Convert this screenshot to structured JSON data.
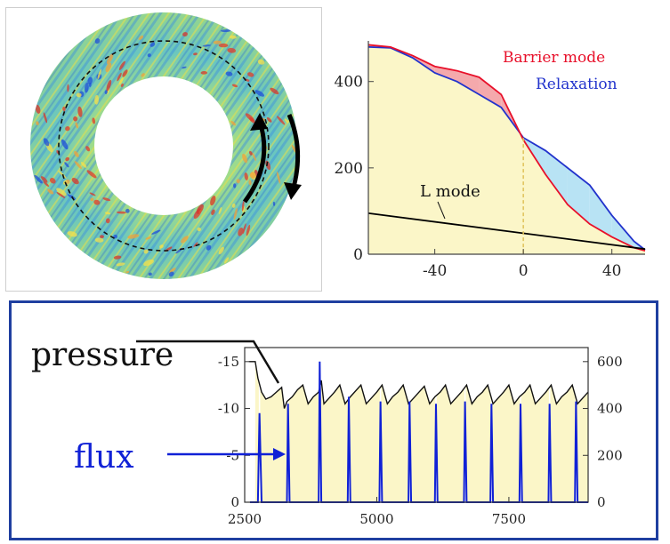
{
  "colors": {
    "barrier": "#e8102a",
    "relaxation": "#2233cc",
    "barrier_fill": "#f4a9ac",
    "relaxation_fill": "#b8e3f4",
    "background_fill": "#fbf6c8",
    "flux": "#1021d6",
    "pressure": "#111111",
    "frame": "#1f3fa0"
  },
  "torus": {
    "arrow_icons": [
      "curved-arrow-up-icon",
      "curved-arrow-down-icon"
    ]
  },
  "chart_data": [
    {
      "type": "line",
      "series": [
        {
          "name": "Barrier mode",
          "x": [
            -70,
            -60,
            -50,
            -40,
            -30,
            -20,
            -10,
            0,
            10,
            20,
            30,
            40,
            50,
            55
          ],
          "y": [
            485,
            480,
            460,
            435,
            425,
            410,
            370,
            265,
            185,
            115,
            70,
            40,
            15,
            8
          ]
        },
        {
          "name": "Relaxation",
          "x": [
            -70,
            -60,
            -50,
            -40,
            -30,
            -20,
            -10,
            0,
            10,
            20,
            30,
            40,
            50,
            55
          ],
          "y": [
            480,
            478,
            455,
            420,
            400,
            370,
            340,
            270,
            240,
            200,
            160,
            90,
            30,
            10
          ]
        },
        {
          "name": "L mode",
          "x": [
            -70,
            55
          ],
          "y": [
            95,
            12
          ]
        }
      ],
      "xticks": [
        "-40",
        "0",
        "40"
      ],
      "xtick_values": [
        -40,
        0,
        40
      ],
      "yticks": [
        "0",
        "200",
        "400"
      ],
      "ytick_values": [
        0,
        200,
        400
      ],
      "xlim": [
        -70,
        55
      ],
      "ylim": [
        0,
        490
      ],
      "annotations": [
        "Barrier mode",
        "Relaxation",
        "L mode"
      ],
      "vline_x": 0
    },
    {
      "type": "line",
      "series": [
        {
          "name": "pressure",
          "axis": "right",
          "x": [
            2580,
            2700,
            2750,
            2820,
            2900,
            3000,
            3100,
            3200,
            3250,
            3300,
            3400,
            3500,
            3600,
            3700,
            3800,
            3900,
            3950,
            4000,
            4100,
            4200,
            4300,
            4400,
            4500,
            4600,
            4700,
            4800,
            4900,
            5000,
            5100,
            5200,
            5300,
            5400,
            5500,
            5600,
            5700,
            5800,
            5900,
            6000,
            6100,
            6200,
            6300,
            6400,
            6500,
            6600,
            6700,
            6800,
            6900,
            7000,
            7100,
            7200,
            7300,
            7400,
            7500,
            7600,
            7700,
            7800,
            7900,
            8000,
            8100,
            8200,
            8300,
            8400,
            8500,
            8600,
            8700,
            8800,
            8900,
            9000
          ],
          "y": [
            600,
            600,
            530,
            470,
            440,
            450,
            470,
            490,
            400,
            430,
            450,
            480,
            500,
            420,
            450,
            470,
            520,
            420,
            445,
            470,
            500,
            420,
            450,
            475,
            500,
            420,
            445,
            470,
            500,
            420,
            450,
            470,
            500,
            420,
            445,
            470,
            495,
            420,
            450,
            470,
            500,
            420,
            445,
            470,
            500,
            420,
            450,
            470,
            500,
            420,
            445,
            470,
            500,
            420,
            450,
            470,
            500,
            420,
            445,
            470,
            500,
            420,
            450,
            470,
            500,
            420,
            445,
            470
          ]
        },
        {
          "name": "flux",
          "axis": "right",
          "x": [
            2600,
            2750,
            2780,
            2820,
            3300,
            3320,
            3350,
            3900,
            3920,
            3950,
            4450,
            4470,
            4500,
            5050,
            5070,
            5100,
            5600,
            5620,
            5650,
            6100,
            6120,
            6150,
            6650,
            6670,
            6700,
            7150,
            7170,
            7200,
            7700,
            7720,
            7750,
            8250,
            8270,
            8300,
            8750,
            8770,
            8800,
            9000
          ],
          "y": [
            0,
            0,
            380,
            0,
            0,
            420,
            0,
            0,
            600,
            0,
            0,
            450,
            0,
            0,
            430,
            0,
            0,
            430,
            0,
            0,
            420,
            0,
            0,
            430,
            0,
            0,
            420,
            0,
            0,
            420,
            0,
            0,
            420,
            0,
            0,
            430,
            0,
            0
          ]
        }
      ],
      "xticks": [
        "2500",
        "5000",
        "7500"
      ],
      "xtick_values": [
        2500,
        5000,
        7500
      ],
      "xlim": [
        2500,
        9000
      ],
      "left_yticks": [
        "0",
        "-5",
        "-10",
        "-15"
      ],
      "left_ytick_values": [
        0,
        5,
        10,
        15
      ],
      "left_ylim": [
        0,
        16.5
      ],
      "right_yticks": [
        "0",
        "200",
        "400",
        "600"
      ],
      "right_ytick_values": [
        0,
        200,
        400,
        600
      ],
      "right_ylim": [
        0,
        660
      ],
      "labels": {
        "pressure": "pressure",
        "flux": "flux"
      }
    }
  ]
}
